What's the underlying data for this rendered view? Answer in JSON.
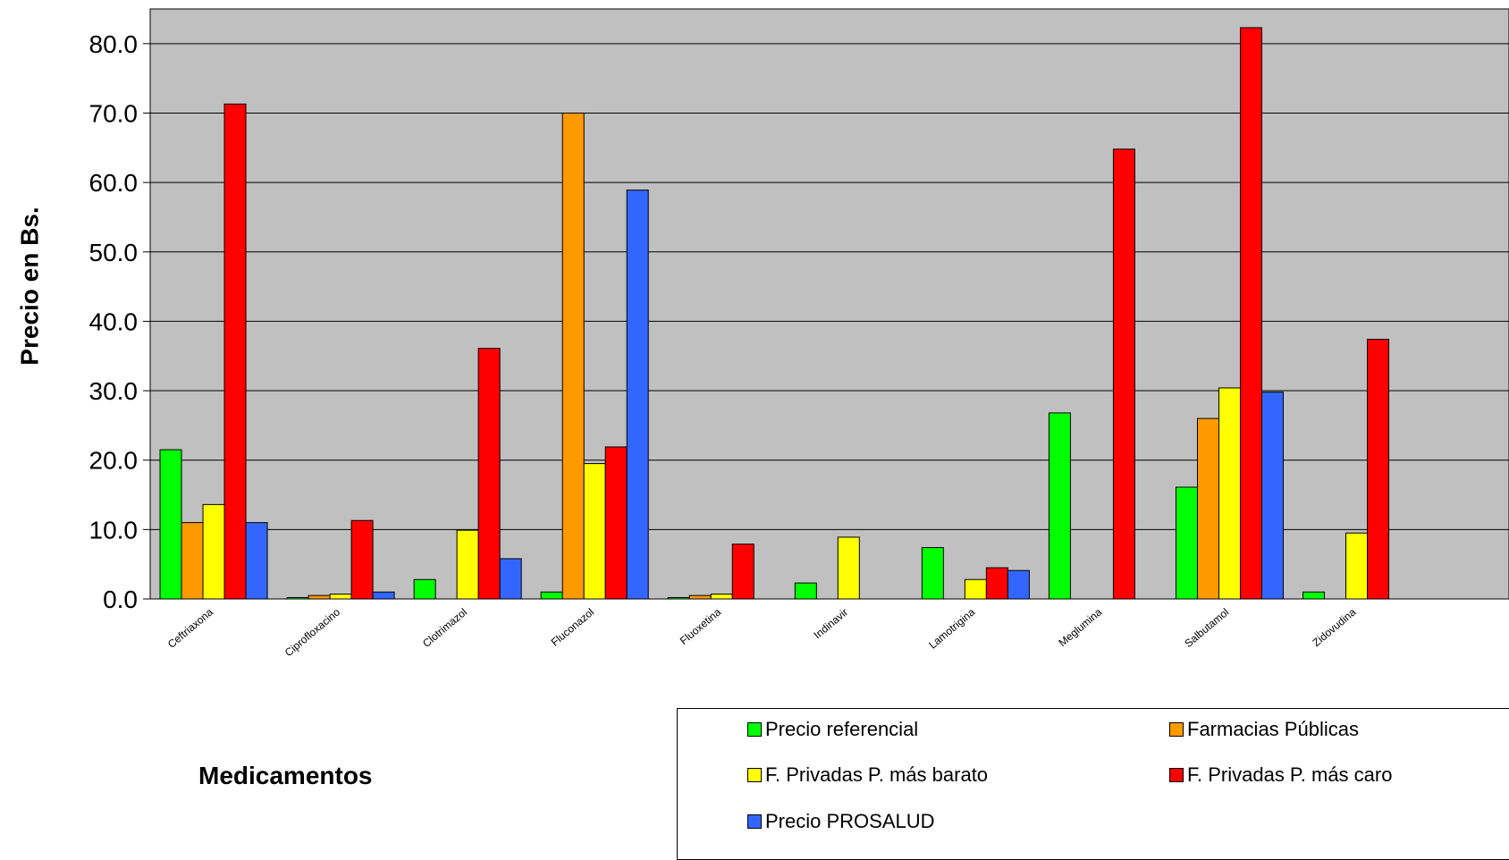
{
  "chart_data": {
    "type": "bar",
    "ylabel": "Precio en Bs.",
    "xlabel": "Medicamentos",
    "ylim": [
      0,
      85
    ],
    "yticks": [
      "0.0",
      "10.0",
      "20.0",
      "30.0",
      "40.0",
      "50.0",
      "60.0",
      "70.0",
      "80.0"
    ],
    "grid": true,
    "plot_background": "#C0C0C0",
    "legend_position": "bottom-right",
    "categories": [
      "Ceftriaxona",
      "Ciprofloxacino",
      "Clotrimazol",
      "Fluconazol",
      "Fluoxetina",
      "Indinavir",
      "Lamotrigina",
      "Meglumina",
      "Salbutamol",
      "Zidovudina"
    ],
    "series": [
      {
        "name": "Precio referencial",
        "color": "#00FF00",
        "values": [
          21.5,
          0.2,
          2.8,
          1.0,
          0.2,
          2.3,
          7.4,
          26.8,
          16.1,
          1.0
        ]
      },
      {
        "name": "Farmacias Públicas",
        "color": "#FF9900",
        "values": [
          11.0,
          0.5,
          null,
          70.0,
          0.5,
          null,
          null,
          null,
          26.0,
          null
        ]
      },
      {
        "name": "F. Privadas P. más barato",
        "color": "#FFFF00",
        "values": [
          13.6,
          0.7,
          9.9,
          19.5,
          0.7,
          8.9,
          2.8,
          null,
          30.4,
          9.5
        ]
      },
      {
        "name": "F. Privadas P. más caro",
        "color": "#FF0000",
        "values": [
          71.3,
          11.3,
          36.1,
          21.9,
          7.9,
          null,
          4.5,
          64.8,
          82.3,
          37.4
        ]
      },
      {
        "name": "Precio PROSALUD",
        "color": "#3366FF",
        "values": [
          11.0,
          1.0,
          5.8,
          58.9,
          null,
          null,
          4.1,
          null,
          29.8,
          null
        ]
      }
    ]
  }
}
